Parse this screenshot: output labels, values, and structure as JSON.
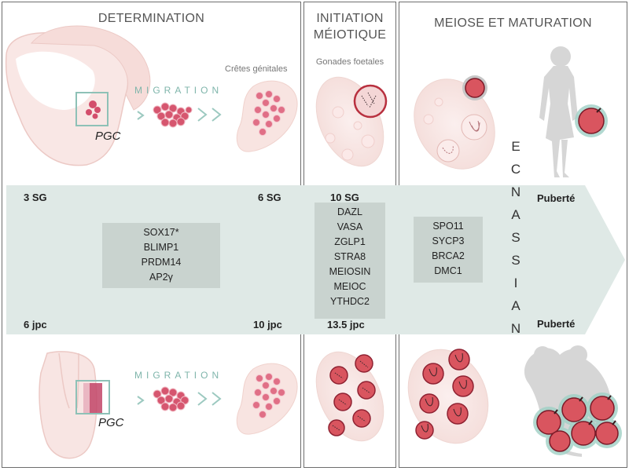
{
  "panels": {
    "determination": {
      "title": "DETERMINATION"
    },
    "initiation": {
      "title_line1": "INITIATION",
      "title_line2": "MÉIOTIQUE",
      "subtitle": "Gonades foetales"
    },
    "meiose": {
      "title": "MEIOSE ET MATURATION"
    }
  },
  "determination": {
    "cretes_label": "Crêtes génitales",
    "migration_top": "MIGRATION",
    "migration_bottom": "MIGRATION",
    "pgc_top": "PGC",
    "pgc_bottom": "PGC"
  },
  "timeline": {
    "top_3sg": "3 SG",
    "top_6sg": "6 SG",
    "top_10sg": "10 SG",
    "top_puberte": "Puberté",
    "bottom_6jpc": "6 jpc",
    "bottom_10jpc": "10 jpc",
    "bottom_135jpc": "13.5 jpc",
    "bottom_puberte": "Puberté"
  },
  "genes": {
    "determination": [
      "SOX17*",
      "BLIMP1",
      "PRDM14",
      "AP2γ"
    ],
    "initiation": [
      "DAZL",
      "VASA",
      "ZGLP1",
      "STRA8",
      "MEIOSIN",
      "MEIOC",
      "YTHDC2"
    ],
    "meiose": [
      "SPO11",
      "SYCP3",
      "BRCA2",
      "DMC1"
    ]
  },
  "naissance": [
    "N",
    "A",
    "I",
    "S",
    "S",
    "A",
    "N",
    "C",
    "E"
  ],
  "colors": {
    "band": "#dfe9e6",
    "gene_box": "#c9d3cf",
    "oocyte_red": "#d9555f",
    "pale_pink": "#f8e6e4",
    "teal": "#7fb5ab",
    "silhouette": "#d8d8d8"
  }
}
